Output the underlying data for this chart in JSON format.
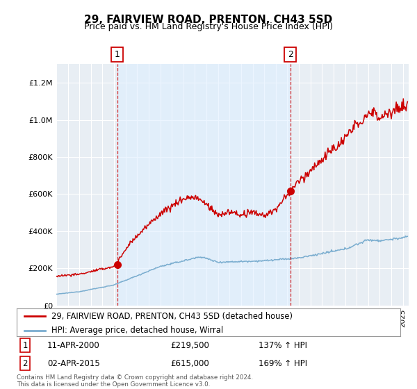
{
  "title": "29, FAIRVIEW ROAD, PRENTON, CH43 5SD",
  "subtitle": "Price paid vs. HM Land Registry's House Price Index (HPI)",
  "footnote": "Contains HM Land Registry data © Crown copyright and database right 2024.\nThis data is licensed under the Open Government Licence v3.0.",
  "legend_line1": "29, FAIRVIEW ROAD, PRENTON, CH43 5SD (detached house)",
  "legend_line2": "HPI: Average price, detached house, Wirral",
  "sale1_date": "11-APR-2000",
  "sale1_price": "£219,500",
  "sale1_hpi": "137% ↑ HPI",
  "sale2_date": "02-APR-2015",
  "sale2_price": "£615,000",
  "sale2_hpi": "169% ↑ HPI",
  "red_color": "#cc0000",
  "blue_color": "#7aadcf",
  "vline_color": "#cc0000",
  "shade_color": "#ddeeff",
  "plot_bg_color": "#e8eef4",
  "grid_color": "#ffffff",
  "ylim": [
    0,
    1300000
  ],
  "xlim_start": 1995.0,
  "xlim_end": 2025.5,
  "sale1_x": 2000.27,
  "sale1_y": 219500,
  "sale2_x": 2015.25,
  "sale2_y": 615000
}
